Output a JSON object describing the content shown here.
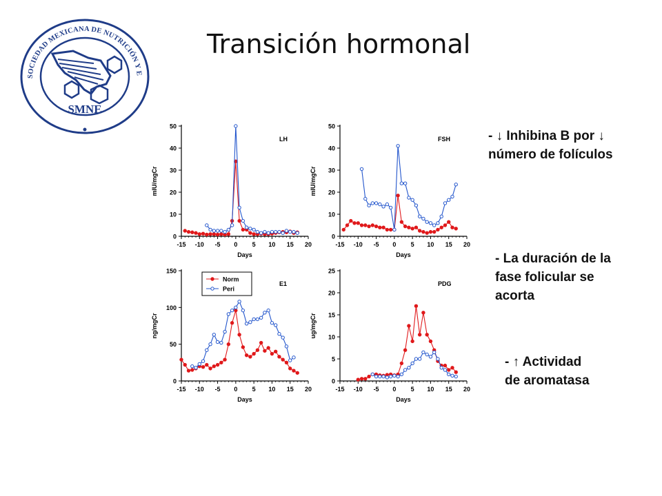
{
  "slide": {
    "title": "Transición hormonal"
  },
  "logo": {
    "ring_text": "SOCIEDAD MEXICANA DE NUTRICIÓN Y ENDOCRINOLOGÍA",
    "abbrev": "SMNE",
    "color": "#1f3c88"
  },
  "notes": [
    {
      "lines": [
        "- ↓ Inhibina B por ↓",
        "número de folículos"
      ]
    },
    {
      "lines": [
        "- La duración de la",
        "fase folicular se",
        "acorta"
      ]
    },
    {
      "lines": [
        "- ↑ Actividad",
        "de aromatasa"
      ]
    }
  ],
  "chart_data": [
    {
      "type": "line",
      "title": "LH",
      "xlabel": "Days",
      "ylabel": "mIU/mgCr",
      "xlim": [
        -15,
        20
      ],
      "ylim": [
        0,
        50
      ],
      "xticks": [
        -15,
        -10,
        -5,
        0,
        5,
        10,
        15,
        20
      ],
      "yticks": [
        0,
        10,
        20,
        30,
        40,
        50
      ],
      "series": [
        {
          "name": "Norm",
          "color": "#e0191b",
          "x": [
            -14,
            -13,
            -12,
            -11,
            -10,
            -9,
            -8,
            -7,
            -6,
            -5,
            -4,
            -3,
            -2,
            -1,
            0,
            1,
            2,
            3,
            4,
            5,
            6,
            7,
            8,
            9,
            10,
            11,
            12,
            13,
            14,
            15,
            16,
            17
          ],
          "y": [
            2.5,
            2,
            1.8,
            1.5,
            1,
            1.2,
            0.8,
            1,
            1,
            0.8,
            1,
            0.8,
            1,
            7,
            34,
            7,
            3,
            3,
            1.5,
            1,
            1,
            1.2,
            1,
            1,
            1.2,
            1.5,
            1.8,
            2,
            1.8,
            2.2,
            1.5,
            1.8
          ]
        },
        {
          "name": "Peri",
          "color": "#2255cc",
          "x": [
            -8,
            -7,
            -6,
            -5,
            -4,
            -3,
            -2,
            -1,
            0,
            1,
            2,
            3,
            4,
            5,
            6,
            7,
            8,
            9,
            10,
            11,
            12,
            13,
            14,
            15,
            16,
            17
          ],
          "y": [
            5,
            3,
            2.5,
            2.5,
            2.5,
            2,
            3,
            5,
            50,
            13,
            7,
            4,
            3.5,
            3,
            2,
            1.5,
            2,
            1.5,
            2,
            2,
            2,
            1.5,
            2.5,
            2,
            2,
            1.5
          ]
        }
      ]
    },
    {
      "type": "line",
      "title": "FSH",
      "xlabel": "Days",
      "ylabel": "mIU/mgCr",
      "xlim": [
        -15,
        20
      ],
      "ylim": [
        0,
        50
      ],
      "xticks": [
        -15,
        -10,
        -5,
        0,
        5,
        10,
        15,
        20
      ],
      "yticks": [
        0,
        10,
        20,
        30,
        40,
        50
      ],
      "series": [
        {
          "name": "Norm",
          "color": "#e0191b",
          "x": [
            -14,
            -13,
            -12,
            -11,
            -10,
            -9,
            -8,
            -7,
            -6,
            -5,
            -4,
            -3,
            -2,
            -1,
            0,
            1,
            2,
            3,
            4,
            5,
            6,
            7,
            8,
            9,
            10,
            11,
            12,
            13,
            14,
            15,
            16,
            17
          ],
          "y": [
            3,
            5,
            7,
            6,
            6,
            5,
            5,
            4.5,
            5,
            4.5,
            4,
            4,
            3,
            3,
            3,
            18.5,
            6.5,
            4.5,
            4,
            3.5,
            4,
            2.5,
            2,
            1.5,
            2,
            2,
            3,
            4,
            5,
            6.5,
            4,
            3.5
          ]
        },
        {
          "name": "Peri",
          "color": "#2255cc",
          "x": [
            -9,
            -8,
            -7,
            -6,
            -5,
            -4,
            -3,
            -2,
            -1,
            0,
            1,
            2,
            3,
            4,
            5,
            6,
            7,
            8,
            9,
            10,
            11,
            12,
            13,
            14,
            15,
            16,
            17
          ],
          "y": [
            30.5,
            17,
            14,
            15,
            15,
            14.5,
            13.5,
            14.5,
            13,
            3,
            41,
            24,
            24,
            17.5,
            16.5,
            14,
            9,
            8,
            6.5,
            6,
            5,
            6,
            9,
            15,
            16.5,
            18,
            23.5
          ]
        }
      ]
    },
    {
      "type": "line",
      "title": "E1",
      "xlabel": "Days",
      "ylabel": "ng/mgCr",
      "xlim": [
        -15,
        20
      ],
      "ylim": [
        0,
        150
      ],
      "xticks": [
        -15,
        -10,
        -5,
        0,
        5,
        10,
        15,
        20
      ],
      "yticks": [
        0,
        50,
        100,
        150
      ],
      "legend": {
        "position": "top-left",
        "entries": [
          "Norm",
          "Peri"
        ]
      },
      "series": [
        {
          "name": "Norm",
          "color": "#e0191b",
          "x": [
            -15,
            -14,
            -13,
            -12,
            -11,
            -10,
            -9,
            -8,
            -7,
            -6,
            -5,
            -4,
            -3,
            -2,
            -1,
            0,
            1,
            2,
            3,
            4,
            5,
            6,
            7,
            8,
            9,
            10,
            11,
            12,
            13,
            14,
            15,
            16,
            17
          ],
          "y": [
            29,
            22,
            14,
            15,
            17,
            20,
            19,
            22,
            17,
            20,
            22,
            25,
            29,
            50,
            79,
            96,
            63,
            46,
            35,
            33,
            37,
            42,
            52,
            41,
            45,
            37,
            40,
            33,
            29,
            25,
            17,
            14,
            11
          ]
        },
        {
          "name": "Peri",
          "color": "#2255cc",
          "x": [
            -12,
            -11,
            -10,
            -9,
            -8,
            -7,
            -6,
            -5,
            -4,
            -3,
            -2,
            -1,
            0,
            1,
            2,
            3,
            4,
            5,
            6,
            7,
            8,
            9,
            10,
            11,
            12,
            13,
            14,
            15,
            16
          ],
          "y": [
            20,
            18,
            23,
            27,
            42,
            50,
            63,
            53,
            52,
            67,
            91,
            96,
            100,
            108,
            96,
            78,
            80,
            84,
            84,
            86,
            93,
            96,
            79,
            76,
            64,
            59,
            47,
            28,
            32
          ]
        }
      ]
    },
    {
      "type": "line",
      "title": "PDG",
      "xlabel": "Days",
      "ylabel": "ug/mgCr",
      "xlim": [
        -15,
        20
      ],
      "ylim": [
        0,
        25
      ],
      "xticks": [
        -15,
        -10,
        -5,
        0,
        5,
        10,
        15,
        20
      ],
      "yticks": [
        0,
        5,
        10,
        15,
        20,
        25
      ],
      "series": [
        {
          "name": "Norm",
          "color": "#e0191b",
          "x": [
            -10,
            -9,
            -8,
            -7,
            -6,
            -5,
            -4,
            -3,
            -2,
            -1,
            0,
            1,
            2,
            3,
            4,
            5,
            6,
            7,
            8,
            9,
            10,
            11,
            12,
            13,
            14,
            15,
            16,
            17
          ],
          "y": [
            0.3,
            0.5,
            0.5,
            1,
            1.5,
            1.5,
            1.3,
            1.2,
            1.4,
            1.5,
            1.3,
            1.5,
            4,
            7,
            12.5,
            9,
            17,
            10.5,
            15.5,
            10.5,
            9,
            7,
            4.5,
            3.5,
            3.5,
            2.5,
            3,
            2
          ]
        },
        {
          "name": "Peri",
          "color": "#2255cc",
          "x": [
            -6,
            -5,
            -4,
            -3,
            -2,
            -1,
            0,
            1,
            2,
            3,
            4,
            5,
            6,
            7,
            8,
            9,
            10,
            11,
            12,
            13,
            14,
            15,
            16,
            17
          ],
          "y": [
            1.5,
            1,
            1,
            1,
            0.8,
            1,
            1.2,
            1,
            1.5,
            2.5,
            3,
            4,
            5,
            5,
            6.5,
            6,
            5.5,
            6.5,
            5,
            3,
            2.5,
            1.5,
            1.2,
            1
          ]
        }
      ]
    }
  ]
}
